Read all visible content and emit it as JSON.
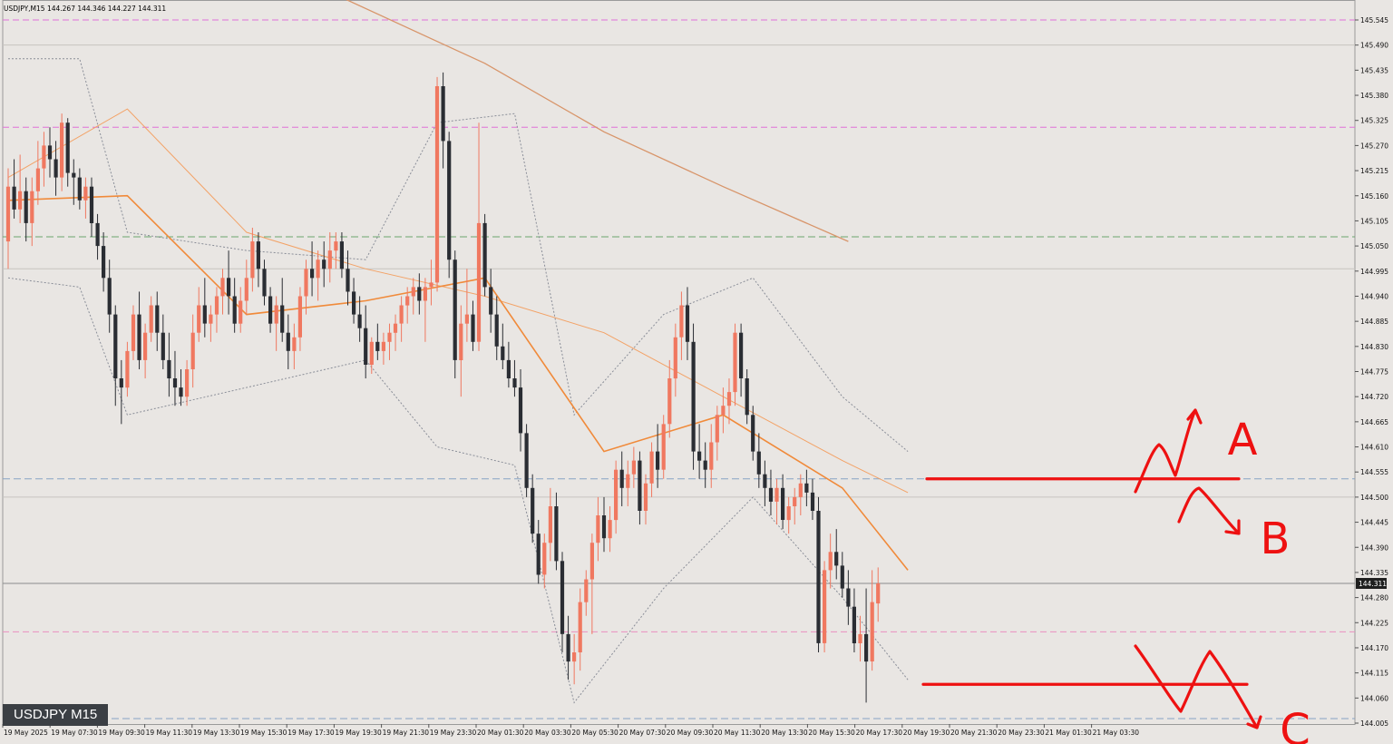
{
  "header": {
    "info": "USDJPY,M15  144.267 144.346 144.227 144.311"
  },
  "badge": {
    "label": "USDJPY M15"
  },
  "colors": {
    "background": "#e9e6e3",
    "bull": "#f07860",
    "bear": "#2a2d33",
    "ma_fast": "#f08a3a",
    "ma_slow": "#f3a266",
    "ma_long": "#d8956a",
    "bands": "#8a8e98",
    "magenta_level": "#e070d8",
    "pink_level": "#ea90c0",
    "green_level": "#6aa66e",
    "blue_level": "#88a3c4",
    "annotation": "#ee1111"
  },
  "chart_data": {
    "type": "candlestick",
    "timeframe": "M15",
    "symbol": "USDJPY",
    "ohlc_shown": {
      "open": 144.267,
      "high": 144.346,
      "low": 144.227,
      "close": 144.311
    },
    "current_price": "144.311",
    "ylim": [
      144.005,
      145.545
    ],
    "y_ticks": [
      "145.545",
      "145.490",
      "145.435",
      "145.380",
      "145.325",
      "145.270",
      "145.215",
      "145.160",
      "145.105",
      "145.050",
      "144.995",
      "144.940",
      "144.885",
      "144.830",
      "144.775",
      "144.720",
      "144.665",
      "144.610",
      "144.555",
      "144.500",
      "144.445",
      "144.390",
      "144.335",
      "144.280",
      "144.225",
      "144.170",
      "144.115",
      "144.060",
      "144.005"
    ],
    "x_ticks": [
      "19 May 2025",
      "19 May 07:30",
      "19 May 09:30",
      "19 May 11:30",
      "19 May 13:30",
      "19 May 15:30",
      "19 May 17:30",
      "19 May 19:30",
      "19 May 21:30",
      "19 May 23:30",
      "20 May 01:30",
      "20 May 03:30",
      "20 May 05:30",
      "20 May 07:30",
      "20 May 09:30",
      "20 May 11:30",
      "20 May 13:30",
      "20 May 15:30",
      "20 May 17:30",
      "20 May 19:30",
      "20 May 21:30",
      "20 May 23:30",
      "21 May 01:30",
      "21 May 03:30"
    ],
    "levels": [
      {
        "price": 145.545,
        "style": "magenta"
      },
      {
        "price": 145.31,
        "style": "magenta"
      },
      {
        "price": 145.07,
        "style": "green"
      },
      {
        "price": 144.54,
        "style": "blue"
      },
      {
        "price": 144.205,
        "style": "pink"
      },
      {
        "price": 144.015,
        "style": "blue"
      },
      {
        "price": 145.49,
        "style": "grey"
      },
      {
        "price": 145.0,
        "style": "grey"
      },
      {
        "price": 144.5,
        "style": "grey"
      },
      {
        "price": 144.311,
        "style": "price"
      }
    ],
    "candles": [
      [
        145.06,
        145.22,
        145.0,
        145.18
      ],
      [
        145.18,
        145.24,
        145.11,
        145.13
      ],
      [
        145.13,
        145.25,
        145.1,
        145.17
      ],
      [
        145.17,
        145.2,
        145.06,
        145.1
      ],
      [
        145.1,
        145.2,
        145.05,
        145.17
      ],
      [
        145.17,
        145.28,
        145.14,
        145.22
      ],
      [
        145.22,
        145.3,
        145.18,
        145.27
      ],
      [
        145.27,
        145.31,
        145.2,
        145.24
      ],
      [
        145.24,
        145.28,
        145.16,
        145.2
      ],
      [
        145.2,
        145.34,
        145.17,
        145.32
      ],
      [
        145.32,
        145.33,
        145.18,
        145.21
      ],
      [
        145.21,
        145.24,
        145.14,
        145.2
      ],
      [
        145.2,
        145.22,
        145.13,
        145.15
      ],
      [
        145.15,
        145.2,
        145.11,
        145.18
      ],
      [
        145.18,
        145.2,
        145.07,
        145.1
      ],
      [
        145.1,
        145.12,
        145.02,
        145.05
      ],
      [
        145.05,
        145.08,
        144.95,
        144.98
      ],
      [
        144.98,
        145.02,
        144.86,
        144.9
      ],
      [
        144.9,
        144.92,
        144.7,
        144.76
      ],
      [
        144.76,
        144.8,
        144.66,
        144.74
      ],
      [
        144.74,
        144.84,
        144.72,
        144.82
      ],
      [
        144.82,
        144.92,
        144.8,
        144.9
      ],
      [
        144.9,
        144.95,
        144.78,
        144.8
      ],
      [
        144.8,
        144.88,
        144.76,
        144.86
      ],
      [
        144.86,
        144.94,
        144.84,
        144.92
      ],
      [
        144.92,
        144.95,
        144.82,
        144.86
      ],
      [
        144.86,
        144.9,
        144.78,
        144.8
      ],
      [
        144.8,
        144.86,
        144.72,
        144.76
      ],
      [
        144.76,
        144.82,
        144.7,
        144.74
      ],
      [
        144.74,
        144.78,
        144.7,
        144.72
      ],
      [
        144.72,
        144.8,
        144.7,
        144.78
      ],
      [
        144.78,
        144.9,
        144.74,
        144.86
      ],
      [
        144.86,
        144.96,
        144.84,
        144.92
      ],
      [
        144.92,
        144.98,
        144.85,
        144.88
      ],
      [
        144.88,
        144.92,
        144.84,
        144.9
      ],
      [
        144.9,
        144.96,
        144.86,
        144.94
      ],
      [
        144.94,
        145.0,
        144.9,
        144.98
      ],
      [
        144.98,
        145.04,
        144.9,
        144.94
      ],
      [
        144.94,
        144.98,
        144.86,
        144.88
      ],
      [
        144.88,
        144.96,
        144.86,
        144.93
      ],
      [
        144.93,
        145.02,
        144.9,
        144.98
      ],
      [
        144.98,
        145.09,
        144.95,
        145.06
      ],
      [
        145.06,
        145.08,
        144.96,
        145.0
      ],
      [
        145.0,
        145.02,
        144.92,
        144.94
      ],
      [
        144.94,
        144.96,
        144.86,
        144.88
      ],
      [
        144.88,
        144.94,
        144.82,
        144.92
      ],
      [
        144.92,
        144.98,
        144.84,
        144.86
      ],
      [
        144.86,
        144.9,
        144.78,
        144.82
      ],
      [
        144.82,
        144.88,
        144.78,
        144.85
      ],
      [
        144.85,
        144.96,
        144.82,
        144.94
      ],
      [
        144.94,
        145.02,
        144.9,
        145.0
      ],
      [
        145.0,
        145.06,
        144.94,
        144.98
      ],
      [
        144.98,
        145.04,
        144.93,
        145.02
      ],
      [
        145.02,
        145.06,
        144.96,
        145.0
      ],
      [
        145.0,
        145.08,
        144.97,
        145.04
      ],
      [
        145.04,
        145.08,
        145.0,
        145.06
      ],
      [
        145.06,
        145.08,
        144.98,
        145.0
      ],
      [
        145.0,
        145.04,
        144.92,
        144.95
      ],
      [
        144.95,
        144.98,
        144.88,
        144.9
      ],
      [
        144.9,
        144.94,
        144.84,
        144.87
      ],
      [
        144.87,
        144.92,
        144.76,
        144.79
      ],
      [
        144.79,
        144.85,
        144.77,
        144.84
      ],
      [
        144.84,
        144.88,
        144.8,
        144.82
      ],
      [
        144.82,
        144.86,
        144.79,
        144.84
      ],
      [
        144.84,
        144.88,
        144.8,
        144.86
      ],
      [
        144.86,
        144.9,
        144.82,
        144.88
      ],
      [
        144.88,
        144.94,
        144.84,
        144.92
      ],
      [
        144.92,
        144.96,
        144.88,
        144.94
      ],
      [
        144.94,
        144.98,
        144.9,
        144.96
      ],
      [
        144.96,
        144.99,
        144.9,
        144.93
      ],
      [
        144.93,
        144.98,
        144.84,
        144.96
      ],
      [
        144.96,
        145.02,
        144.92,
        144.97
      ],
      [
        144.97,
        145.42,
        144.95,
        145.4
      ],
      [
        145.4,
        145.43,
        145.22,
        145.28
      ],
      [
        145.28,
        145.3,
        144.98,
        145.02
      ],
      [
        145.02,
        145.04,
        144.76,
        144.8
      ],
      [
        144.8,
        144.92,
        144.72,
        144.88
      ],
      [
        144.88,
        145.0,
        144.84,
        144.9
      ],
      [
        144.9,
        144.93,
        144.82,
        144.84
      ],
      [
        144.84,
        145.32,
        144.82,
        145.1
      ],
      [
        145.1,
        145.12,
        144.94,
        144.96
      ],
      [
        144.96,
        145.0,
        144.86,
        144.9
      ],
      [
        144.9,
        144.94,
        144.8,
        144.83
      ],
      [
        144.83,
        144.88,
        144.78,
        144.8
      ],
      [
        144.8,
        144.84,
        144.74,
        144.76
      ],
      [
        144.76,
        144.8,
        144.72,
        144.74
      ],
      [
        144.74,
        144.78,
        144.6,
        144.64
      ],
      [
        144.64,
        144.66,
        144.5,
        144.52
      ],
      [
        144.52,
        144.55,
        144.4,
        144.42
      ],
      [
        144.42,
        144.45,
        144.31,
        144.33
      ],
      [
        144.33,
        144.42,
        144.3,
        144.4
      ],
      [
        144.4,
        144.52,
        144.36,
        144.48
      ],
      [
        144.48,
        144.51,
        144.34,
        144.36
      ],
      [
        144.36,
        144.38,
        144.16,
        144.2
      ],
      [
        144.2,
        144.24,
        144.1,
        144.14
      ],
      [
        144.14,
        144.2,
        144.09,
        144.16
      ],
      [
        144.16,
        144.3,
        144.12,
        144.27
      ],
      [
        144.27,
        144.34,
        144.24,
        144.32
      ],
      [
        144.32,
        144.42,
        144.2,
        144.4
      ],
      [
        144.4,
        144.5,
        144.36,
        144.46
      ],
      [
        144.46,
        144.5,
        144.38,
        144.41
      ],
      [
        144.41,
        144.48,
        144.38,
        144.45
      ],
      [
        144.45,
        144.58,
        144.42,
        144.56
      ],
      [
        144.56,
        144.6,
        144.48,
        144.52
      ],
      [
        144.52,
        144.58,
        144.48,
        144.55
      ],
      [
        144.55,
        144.61,
        144.52,
        144.58
      ],
      [
        144.58,
        144.6,
        144.44,
        144.47
      ],
      [
        144.47,
        144.55,
        144.44,
        144.53
      ],
      [
        144.53,
        144.62,
        144.5,
        144.6
      ],
      [
        144.6,
        144.66,
        144.52,
        144.56
      ],
      [
        144.56,
        144.68,
        144.54,
        144.66
      ],
      [
        144.66,
        144.8,
        144.63,
        144.76
      ],
      [
        144.76,
        144.88,
        144.72,
        144.85
      ],
      [
        144.85,
        144.95,
        144.8,
        144.92
      ],
      [
        144.92,
        144.96,
        144.8,
        144.84
      ],
      [
        144.84,
        144.88,
        144.56,
        144.6
      ],
      [
        144.6,
        144.66,
        144.54,
        144.58
      ],
      [
        144.58,
        144.62,
        144.52,
        144.56
      ],
      [
        144.56,
        144.66,
        144.52,
        144.62
      ],
      [
        144.62,
        144.7,
        144.58,
        144.68
      ],
      [
        144.68,
        144.74,
        144.64,
        144.7
      ],
      [
        144.7,
        144.76,
        144.66,
        144.73
      ],
      [
        144.73,
        144.88,
        144.7,
        144.86
      ],
      [
        144.86,
        144.88,
        144.72,
        144.76
      ],
      [
        144.76,
        144.78,
        144.66,
        144.68
      ],
      [
        144.68,
        144.7,
        144.58,
        144.6
      ],
      [
        144.6,
        144.64,
        144.52,
        144.55
      ],
      [
        144.55,
        144.58,
        144.48,
        144.52
      ],
      [
        144.52,
        144.56,
        144.46,
        144.49
      ],
      [
        144.49,
        144.54,
        144.44,
        144.52
      ],
      [
        144.52,
        144.55,
        144.43,
        144.45
      ],
      [
        144.45,
        144.5,
        144.42,
        144.48
      ],
      [
        144.48,
        144.52,
        144.44,
        144.5
      ],
      [
        144.5,
        144.55,
        144.46,
        144.53
      ],
      [
        144.53,
        144.56,
        144.48,
        144.51
      ],
      [
        144.51,
        144.54,
        144.45,
        144.47
      ],
      [
        144.47,
        144.5,
        144.16,
        144.18
      ],
      [
        144.18,
        144.36,
        144.16,
        144.34
      ],
      [
        144.34,
        144.42,
        144.3,
        144.38
      ],
      [
        144.38,
        144.43,
        144.32,
        144.35
      ],
      [
        144.35,
        144.38,
        144.28,
        144.3
      ],
      [
        144.3,
        144.34,
        144.22,
        144.26
      ],
      [
        144.26,
        144.3,
        144.16,
        144.18
      ],
      [
        144.18,
        144.24,
        144.14,
        144.2
      ],
      [
        144.2,
        144.3,
        144.05,
        144.14
      ],
      [
        144.14,
        144.34,
        144.12,
        144.27
      ],
      [
        144.267,
        144.346,
        144.227,
        144.311
      ]
    ],
    "indicators": {
      "ma_fast": [
        [
          0,
          145.15
        ],
        [
          20,
          145.16
        ],
        [
          40,
          144.9
        ],
        [
          60,
          144.93
        ],
        [
          80,
          144.98
        ],
        [
          100,
          144.6
        ],
        [
          120,
          144.68
        ],
        [
          140,
          144.52
        ],
        [
          151,
          144.34
        ]
      ],
      "ma_slow": [
        [
          0,
          145.2
        ],
        [
          20,
          145.35
        ],
        [
          40,
          145.08
        ],
        [
          60,
          145.0
        ],
        [
          80,
          144.94
        ],
        [
          100,
          144.86
        ],
        [
          120,
          144.72
        ],
        [
          140,
          144.58
        ],
        [
          151,
          144.51
        ]
      ],
      "ma_long": [
        [
          55,
          145.6
        ],
        [
          80,
          145.45
        ],
        [
          100,
          145.3
        ],
        [
          120,
          145.18
        ],
        [
          141,
          145.06
        ]
      ],
      "band_upper": [
        [
          0,
          145.46
        ],
        [
          12,
          145.46
        ],
        [
          20,
          145.08
        ],
        [
          40,
          145.04
        ],
        [
          60,
          145.02
        ],
        [
          72,
          145.32
        ],
        [
          85,
          145.34
        ],
        [
          95,
          144.68
        ],
        [
          110,
          144.9
        ],
        [
          125,
          144.98
        ],
        [
          140,
          144.72
        ],
        [
          151,
          144.6
        ]
      ],
      "band_lower": [
        [
          0,
          144.98
        ],
        [
          12,
          144.96
        ],
        [
          20,
          144.68
        ],
        [
          40,
          144.74
        ],
        [
          60,
          144.8
        ],
        [
          72,
          144.61
        ],
        [
          85,
          144.57
        ],
        [
          95,
          144.05
        ],
        [
          110,
          144.3
        ],
        [
          125,
          144.5
        ],
        [
          140,
          144.28
        ],
        [
          151,
          144.1
        ]
      ]
    },
    "annotations": {
      "labels": [
        "A",
        "B",
        "C"
      ],
      "resistance_level": 144.54,
      "support_level": 144.09
    }
  }
}
